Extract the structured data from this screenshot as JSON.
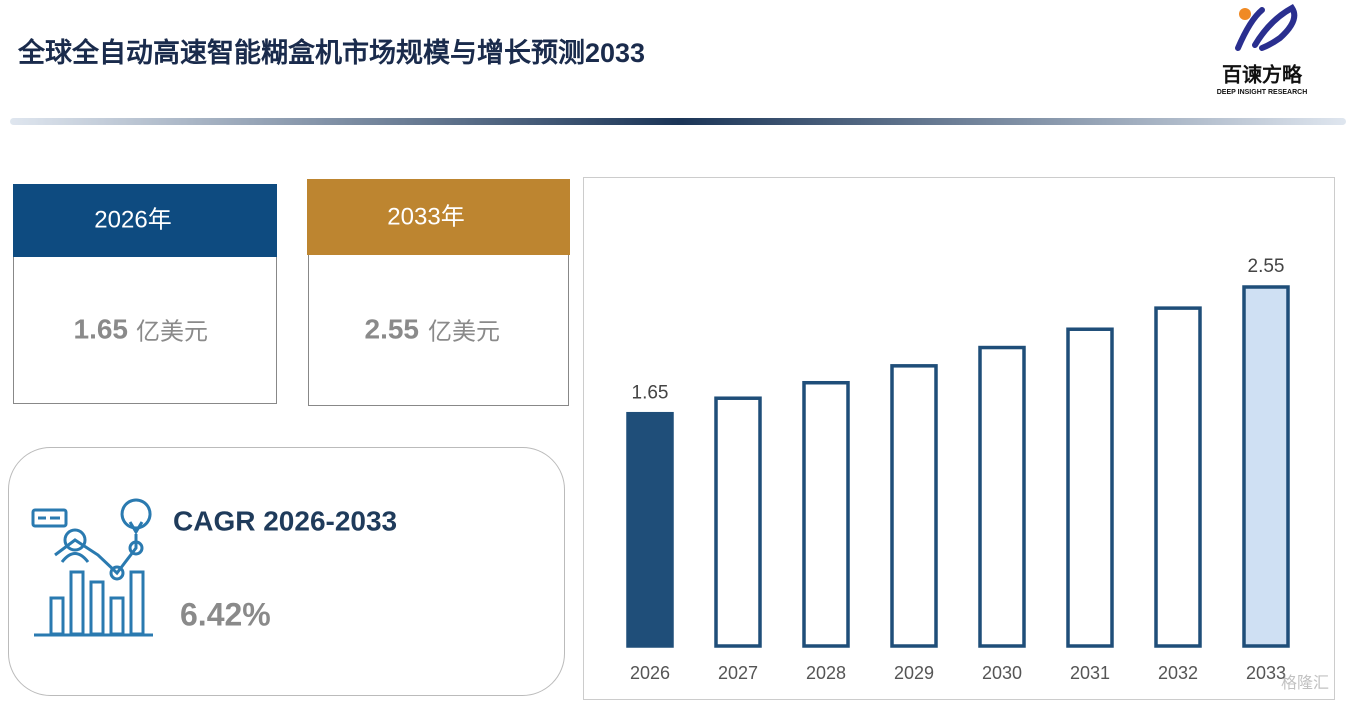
{
  "header": {
    "title": "全球全自动高速智能糊盒机市场规模与增长预测2033"
  },
  "logo": {
    "name": "百谏方略",
    "tagline": "DEEP INSIGHT RESEARCH"
  },
  "cards": [
    {
      "year": "2026年",
      "value": "1.65",
      "unit": "亿美元"
    },
    {
      "year": "2033年",
      "value": "2.55",
      "unit": "亿美元"
    }
  ],
  "cagr": {
    "label": "CAGR 2026-2033",
    "value": "6.42%"
  },
  "watermark": "格隆汇",
  "chart_data": {
    "type": "bar",
    "categories": [
      "2026",
      "2027",
      "2028",
      "2029",
      "2030",
      "2031",
      "2032",
      "2033"
    ],
    "values": [
      1.65,
      1.76,
      1.87,
      1.99,
      2.12,
      2.25,
      2.4,
      2.55
    ],
    "color": "#1f4e79",
    "bar_fills": [
      "#1f4e79",
      "#ffffff",
      "#ffffff",
      "#ffffff",
      "#ffffff",
      "#ffffff",
      "#ffffff",
      "#cfe0f3"
    ]
  }
}
